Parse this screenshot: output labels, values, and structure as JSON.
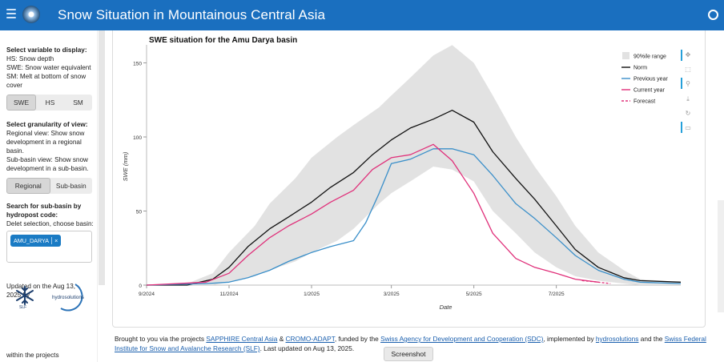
{
  "header": {
    "title": "Snow Situation in Mountainous Central Asia"
  },
  "sidebar": {
    "variable_title": "Select variable to display:",
    "variable_desc": [
      "HS: Snow depth",
      "SWE: Snow water equivalent",
      "SM: Melt at bottom of snow cover"
    ],
    "variable_options": [
      "SWE",
      "HS",
      "SM"
    ],
    "granularity_title": "Select granularity of view:",
    "granularity_desc": [
      "Regional view: Show snow development in a regional basin.",
      "Sub-basin view: Show snow development in a sub-basin."
    ],
    "granularity_options": [
      "Regional",
      "Sub-basin"
    ],
    "search_title": "Search for sub-basin by hydropost code:",
    "search_hint": "Delet selection, choose basin:",
    "selected_basin": "AMU_DARYA",
    "chip_remove": "×",
    "updated": "Updated on the Aug 13, 2025 by",
    "hydro_logo_text": "hydrosolutions",
    "slf_text": "SLF",
    "within": "within the projects"
  },
  "footer": {
    "t1": "Brought to you via the projects ",
    "l1": "SAPPHIRE Central Asia",
    "t2": " & ",
    "l2": "CROMO-ADAPT",
    "t3": ", funded by the ",
    "l3": "Swiss Agency for Development and Cooperation (SDC)",
    "t4": ", implemented by ",
    "l4": "hydrosolutions",
    "t5": " and the ",
    "l5": "Swiss Federal Institute for Snow and Avalanche Research (SLF)",
    "t6": ". Last updated on Aug 13, 2025."
  },
  "screenshot_label": "Screenshot",
  "chart_data": {
    "type": "line",
    "title": "SWE situation for the Amu Darya basin",
    "xlabel": "Date",
    "ylabel": "SWE (mm)",
    "ylim": [
      0,
      160
    ],
    "yticks": [
      0,
      50,
      100,
      150
    ],
    "xlim": [
      "2024-09-01",
      "2025-10-01"
    ],
    "xticks": [
      "2024-09-01",
      "2024-11-01",
      "2025-01-01",
      "2025-03-01",
      "2025-05-01",
      "2025-07-01"
    ],
    "xtick_labels": [
      "9/2024",
      "11/2024",
      "1/2025",
      "3/2025",
      "5/2025",
      "7/2025"
    ],
    "legend_position": "top-right",
    "colors": {
      "band": "#e2e2e2",
      "norm": "#111111",
      "previous": "#3a8fc9",
      "current": "#e0307a",
      "forecast": "#e0307a"
    },
    "band": {
      "name": "90%ile range",
      "x": [
        "2024-09-01",
        "2024-10-01",
        "2024-10-20",
        "2024-11-01",
        "2024-11-20",
        "2024-12-01",
        "2024-12-20",
        "2025-01-01",
        "2025-01-20",
        "2025-02-01",
        "2025-02-20",
        "2025-03-01",
        "2025-03-15",
        "2025-04-01",
        "2025-04-15",
        "2025-05-01",
        "2025-05-15",
        "2025-06-01",
        "2025-06-15",
        "2025-07-01",
        "2025-07-15",
        "2025-08-01",
        "2025-08-20",
        "2025-09-01",
        "2025-10-01"
      ],
      "upper": [
        0,
        1,
        8,
        22,
        40,
        55,
        72,
        86,
        100,
        108,
        120,
        128,
        140,
        155,
        162,
        150,
        128,
        100,
        80,
        60,
        40,
        22,
        10,
        4,
        2
      ],
      "lower": [
        0,
        0,
        0,
        2,
        6,
        10,
        16,
        22,
        30,
        38,
        55,
        62,
        70,
        80,
        78,
        70,
        50,
        35,
        22,
        12,
        6,
        3,
        1,
        0,
        0
      ]
    },
    "series": [
      {
        "name": "Norm",
        "x": [
          "2024-09-01",
          "2024-10-01",
          "2024-10-20",
          "2024-11-01",
          "2024-11-15",
          "2024-12-01",
          "2024-12-15",
          "2025-01-01",
          "2025-01-15",
          "2025-02-01",
          "2025-02-15",
          "2025-03-01",
          "2025-03-15",
          "2025-04-01",
          "2025-04-15",
          "2025-05-01",
          "2025-05-15",
          "2025-06-01",
          "2025-06-15",
          "2025-07-01",
          "2025-07-15",
          "2025-08-01",
          "2025-08-20",
          "2025-09-01",
          "2025-10-01"
        ],
        "values": [
          0,
          0,
          4,
          12,
          26,
          38,
          46,
          56,
          66,
          76,
          88,
          98,
          106,
          112,
          118,
          110,
          90,
          72,
          58,
          40,
          24,
          12,
          5,
          3,
          2
        ]
      },
      {
        "name": "Previous year",
        "x": [
          "2024-09-01",
          "2024-10-15",
          "2024-11-01",
          "2024-11-15",
          "2024-12-01",
          "2024-12-15",
          "2025-01-01",
          "2025-01-15",
          "2025-02-01",
          "2025-02-10",
          "2025-02-20",
          "2025-03-01",
          "2025-03-15",
          "2025-04-01",
          "2025-04-15",
          "2025-05-01",
          "2025-05-15",
          "2025-06-01",
          "2025-06-15",
          "2025-07-01",
          "2025-07-15",
          "2025-08-01",
          "2025-08-20",
          "2025-09-01",
          "2025-10-01"
        ],
        "values": [
          0,
          1,
          2,
          5,
          10,
          16,
          22,
          26,
          30,
          42,
          62,
          82,
          85,
          92,
          92,
          88,
          74,
          55,
          45,
          32,
          20,
          10,
          4,
          2,
          1
        ]
      },
      {
        "name": "Current year",
        "x": [
          "2024-09-01",
          "2024-10-15",
          "2024-11-01",
          "2024-11-15",
          "2024-12-01",
          "2024-12-15",
          "2025-01-01",
          "2025-01-15",
          "2025-02-01",
          "2025-02-15",
          "2025-03-01",
          "2025-03-15",
          "2025-04-01",
          "2025-04-15",
          "2025-05-01",
          "2025-05-15",
          "2025-06-01",
          "2025-06-15",
          "2025-07-01",
          "2025-07-15",
          "2025-08-01"
        ],
        "values": [
          0,
          2,
          8,
          20,
          32,
          40,
          48,
          56,
          64,
          78,
          86,
          88,
          95,
          84,
          62,
          35,
          18,
          12,
          8,
          4,
          2
        ]
      },
      {
        "name": "Forecast",
        "x": [
          "2025-07-20",
          "2025-08-01",
          "2025-08-10"
        ],
        "values": [
          3,
          2,
          1
        ]
      }
    ]
  }
}
